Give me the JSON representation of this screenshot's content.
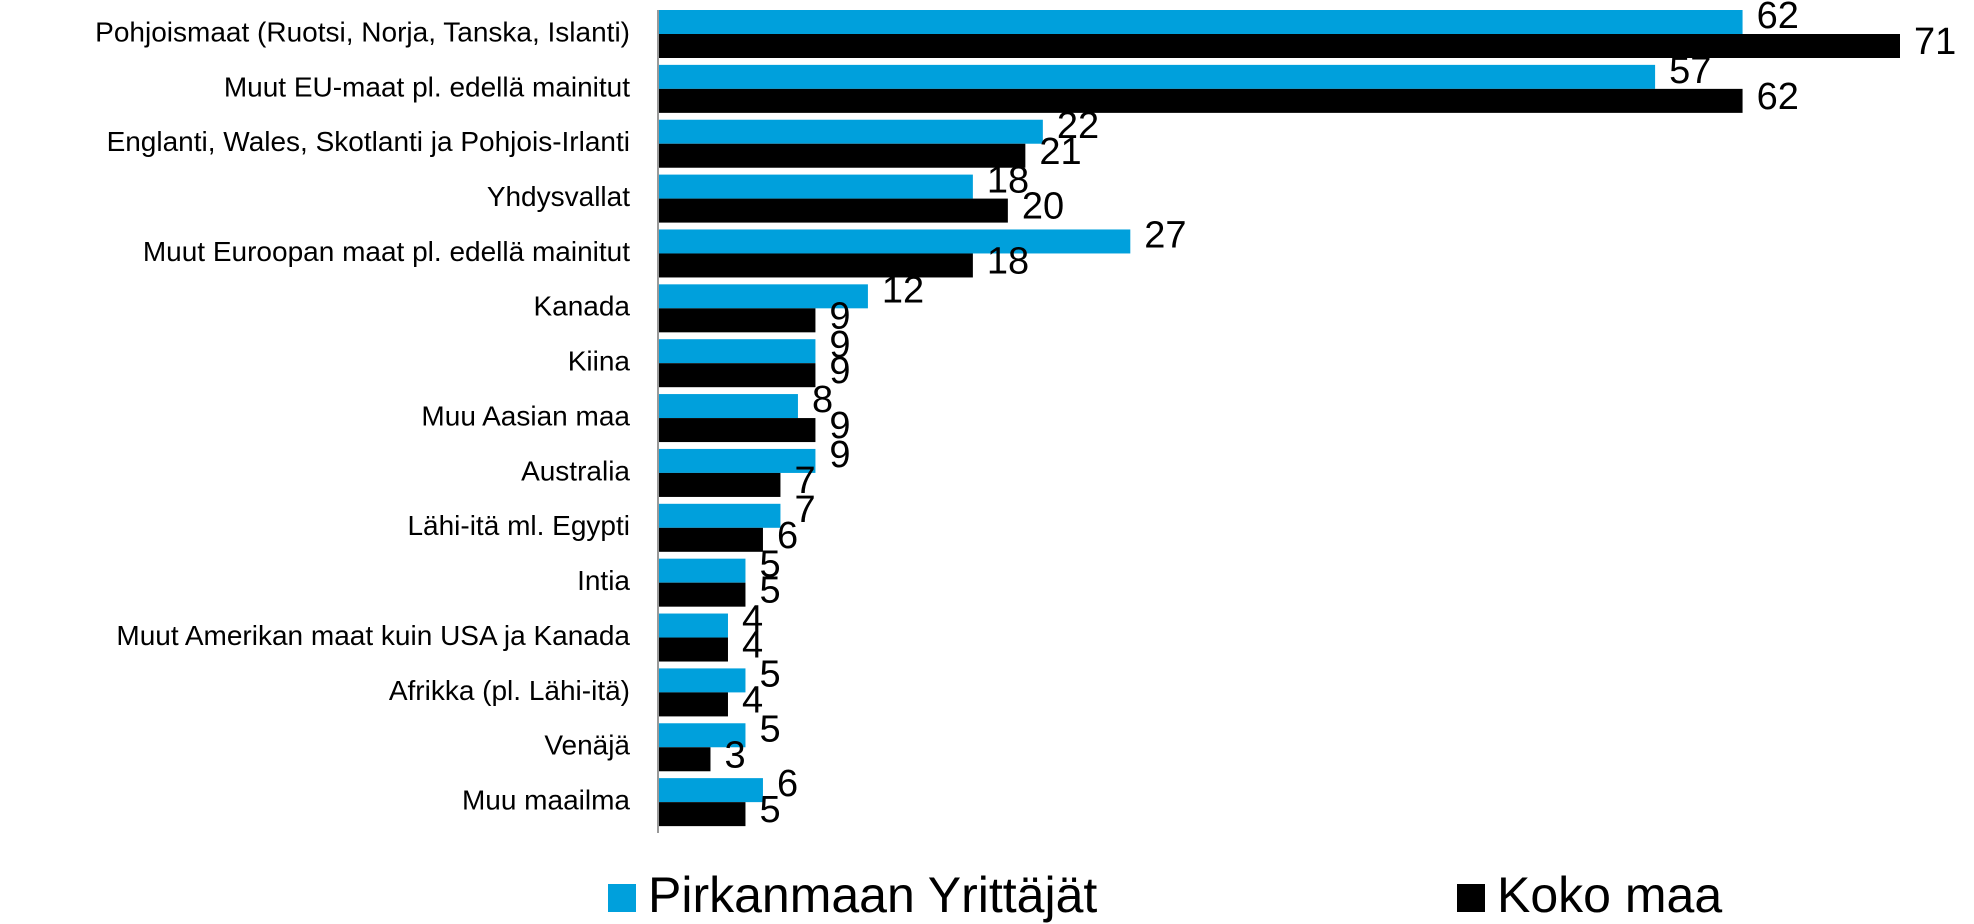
{
  "chart_data": {
    "type": "bar",
    "orientation": "horizontal",
    "categories": [
      "Pohjoismaat (Ruotsi, Norja, Tanska, Islanti)",
      "Muut EU-maat pl. edellä mainitut",
      "Englanti, Wales, Skotlanti ja Pohjois-Irlanti",
      "Yhdysvallat",
      "Muut Euroopan maat pl. edellä mainitut",
      "Kanada",
      "Kiina",
      "Muu Aasian maa",
      "Australia",
      "Lähi-itä ml. Egypti",
      "Intia",
      "Muut Amerikan maat kuin USA ja Kanada",
      "Afrikka (pl. Lähi-itä)",
      "Venäjä",
      "Muu maailma"
    ],
    "series": [
      {
        "name": "Pirkanmaan Yrittäjät",
        "color": "#00a0dc",
        "values": [
          62,
          57,
          22,
          18,
          27,
          12,
          9,
          8,
          9,
          7,
          5,
          4,
          5,
          5,
          6
        ]
      },
      {
        "name": "Koko maa",
        "color": "#000000",
        "values": [
          71,
          62,
          21,
          20,
          18,
          9,
          9,
          9,
          7,
          6,
          5,
          4,
          4,
          3,
          5
        ]
      }
    ],
    "legend": "bottom"
  }
}
